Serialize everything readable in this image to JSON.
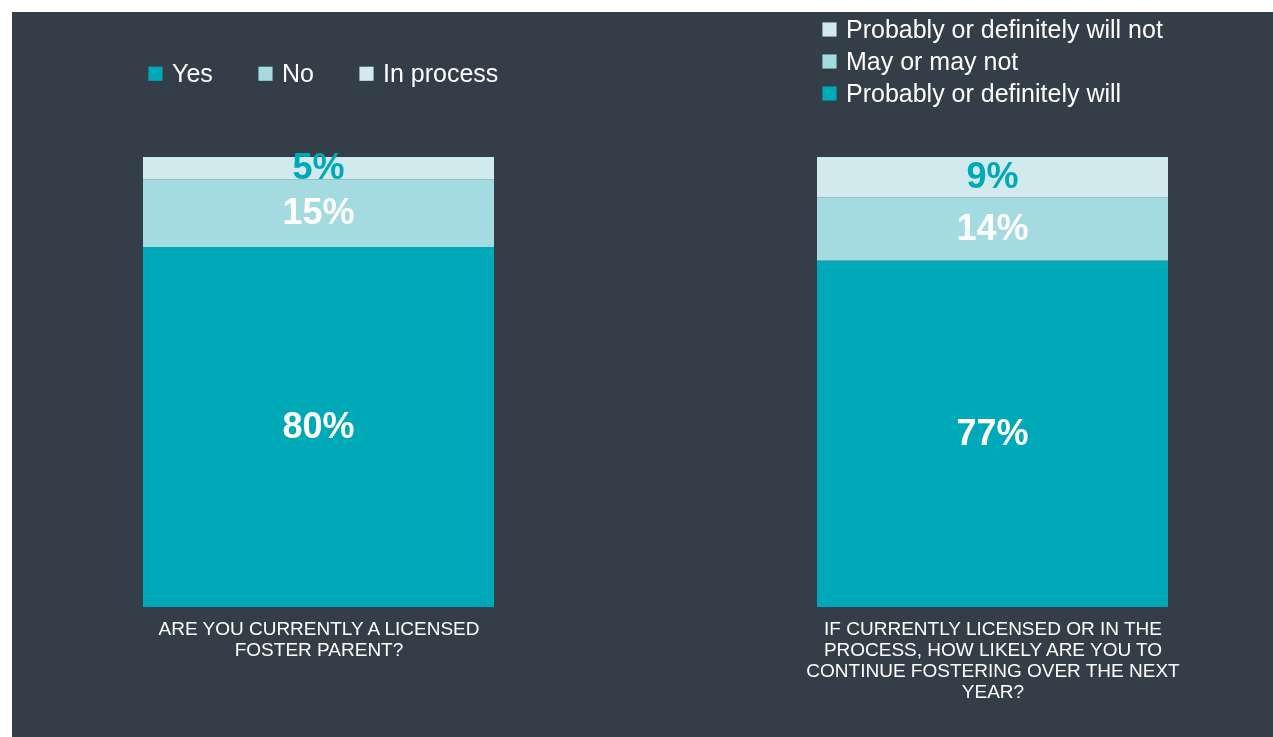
{
  "chart_data": [
    {
      "type": "bar",
      "stacked": true,
      "categories": [
        null
      ],
      "xlabel": "ARE YOU CURRENTLY A LICENSED FOSTER PARENT?",
      "ylim": [
        0,
        100
      ],
      "legend": "top",
      "series": [
        {
          "name": "Yes",
          "color": "#00a9b7",
          "values": [
            80
          ],
          "value_labels": [
            "80%"
          ]
        },
        {
          "name": "No",
          "color": "#a3dbe0",
          "values": [
            15
          ],
          "value_labels": [
            "15%"
          ]
        },
        {
          "name": "In process",
          "color": "#d0eaee",
          "values": [
            5
          ],
          "value_labels": [
            "5%"
          ]
        }
      ]
    },
    {
      "type": "bar",
      "stacked": true,
      "categories": [
        null
      ],
      "xlabel": "IF CURRENTLY LICENSED OR IN THE PROCESS, HOW LIKELY ARE YOU TO CONTINUE FOSTERING OVER THE NEXT YEAR?",
      "ylim": [
        0,
        100
      ],
      "legend": "top right",
      "series": [
        {
          "name": "Probably or definitely will",
          "color": "#00a9b7",
          "values": [
            77
          ],
          "value_labels": [
            "77%"
          ]
        },
        {
          "name": "May or may not",
          "color": "#a3dbe0",
          "values": [
            14
          ],
          "value_labels": [
            "14%"
          ]
        },
        {
          "name": "Probably or definitely will not",
          "color": "#d0eaee",
          "values": [
            9
          ],
          "value_labels": [
            "9%"
          ]
        }
      ]
    }
  ]
}
